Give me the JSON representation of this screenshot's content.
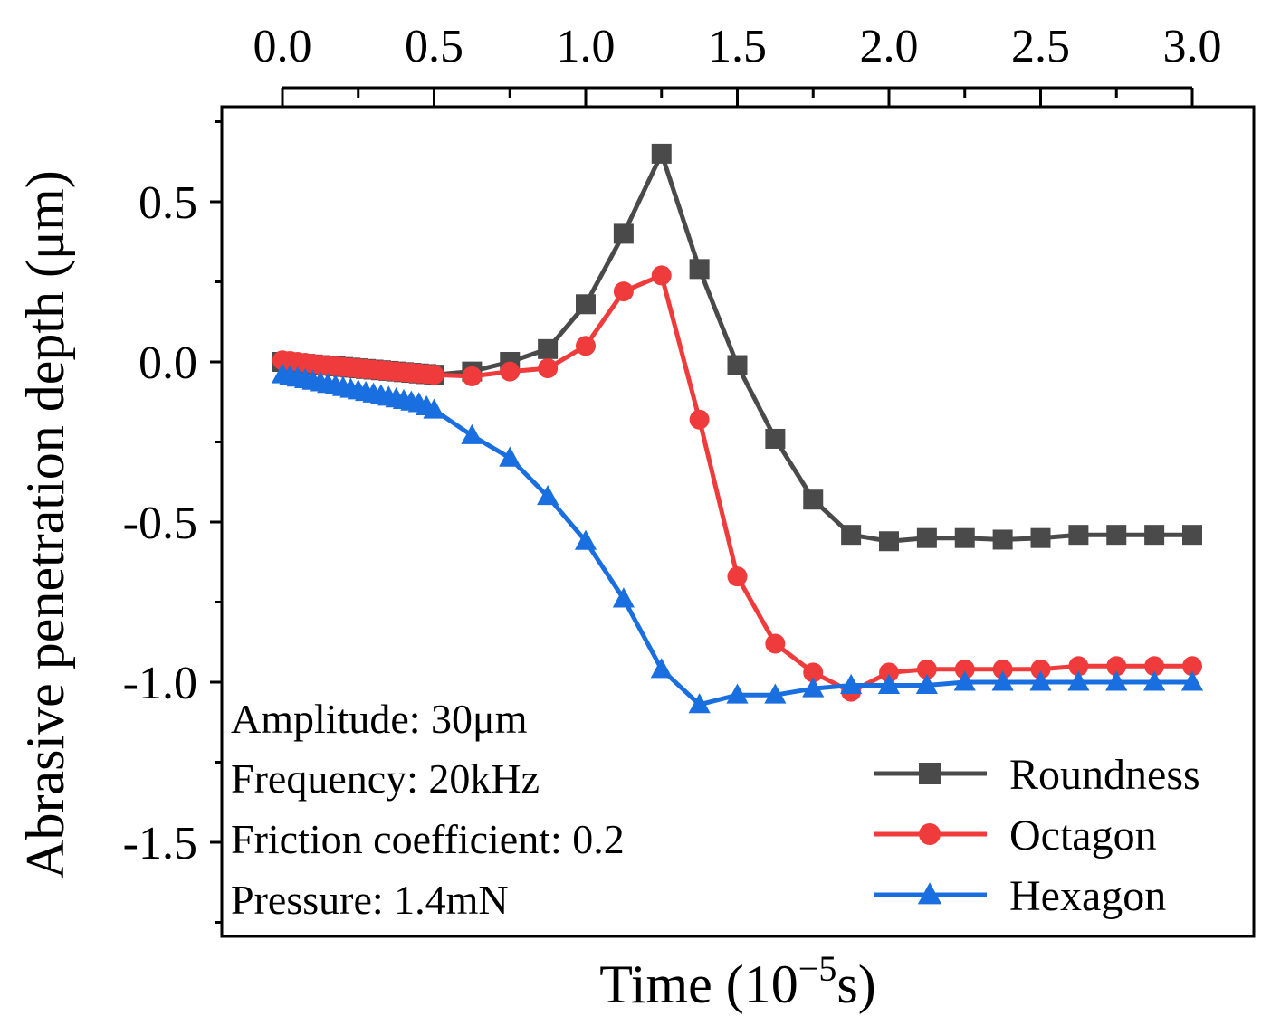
{
  "chart_data": {
    "type": "line",
    "xlabel": "Time (10",
    "xlabel_sup": "−5",
    "xlabel_suffix": "s)",
    "ylabel": "Abrasive penetration depth (μm)",
    "xlim": [
      -0.1,
      3.2
    ],
    "ylim": [
      -1.8,
      0.8
    ],
    "x_tick_position": "top",
    "x_ticks": [
      "0.0",
      "0.5",
      "1.0",
      "1.5",
      "2.0",
      "2.5",
      "3.0"
    ],
    "y_ticks": [
      "0.5",
      "0.0",
      "-0.5",
      "-1.0",
      "-1.5"
    ],
    "grid": false,
    "legend_position": "bottom-right",
    "annotation": [
      "Amplitude: 30μm",
      "Frequency: 20kHz",
      "Friction coefficient: 0.2",
      "Pressure: 1.4mN"
    ],
    "series": [
      {
        "name": "Roundness",
        "color": "#4a4a4a",
        "marker": "square",
        "x": [
          0,
          0.025,
          0.05,
          0.075,
          0.1,
          0.125,
          0.15,
          0.175,
          0.2,
          0.225,
          0.25,
          0.275,
          0.3,
          0.325,
          0.35,
          0.375,
          0.4,
          0.425,
          0.45,
          0.475,
          0.5,
          0.625,
          0.75,
          0.875,
          1.0,
          1.125,
          1.25,
          1.375,
          1.5,
          1.625,
          1.75,
          1.875,
          2.0,
          2.125,
          2.25,
          2.375,
          2.5,
          2.625,
          2.75,
          2.875,
          3.0
        ],
        "values": [
          0,
          -0.002,
          -0.004,
          -0.006,
          -0.008,
          -0.01,
          -0.012,
          -0.014,
          -0.016,
          -0.018,
          -0.02,
          -0.022,
          -0.024,
          -0.026,
          -0.028,
          -0.03,
          -0.032,
          -0.034,
          -0.036,
          -0.038,
          -0.04,
          -0.03,
          0.0,
          0.04,
          0.18,
          0.4,
          0.65,
          0.29,
          -0.01,
          -0.24,
          -0.43,
          -0.54,
          -0.56,
          -0.55,
          -0.55,
          -0.555,
          -0.55,
          -0.54,
          -0.54,
          -0.54,
          -0.54
        ]
      },
      {
        "name": "Octagon",
        "color": "#ef3b3b",
        "marker": "circle",
        "x": [
          0,
          0.025,
          0.05,
          0.075,
          0.1,
          0.125,
          0.15,
          0.175,
          0.2,
          0.225,
          0.25,
          0.275,
          0.3,
          0.325,
          0.35,
          0.375,
          0.4,
          0.425,
          0.45,
          0.475,
          0.5,
          0.625,
          0.75,
          0.875,
          1.0,
          1.125,
          1.25,
          1.375,
          1.5,
          1.625,
          1.75,
          1.875,
          2.0,
          2.125,
          2.25,
          2.375,
          2.5,
          2.625,
          2.75,
          2.875,
          3.0
        ],
        "values": [
          0.005,
          0.003,
          0.0,
          -0.003,
          -0.006,
          -0.009,
          -0.012,
          -0.014,
          -0.016,
          -0.018,
          -0.02,
          -0.022,
          -0.024,
          -0.026,
          -0.028,
          -0.03,
          -0.032,
          -0.034,
          -0.036,
          -0.038,
          -0.04,
          -0.045,
          -0.03,
          -0.02,
          0.05,
          0.22,
          0.27,
          -0.18,
          -0.67,
          -0.88,
          -0.97,
          -1.03,
          -0.97,
          -0.96,
          -0.96,
          -0.96,
          -0.96,
          -0.95,
          -0.95,
          -0.95,
          -0.95
        ]
      },
      {
        "name": "Hexagon",
        "color": "#1a6fe0",
        "marker": "triangle",
        "x": [
          0,
          0.025,
          0.05,
          0.075,
          0.1,
          0.125,
          0.15,
          0.175,
          0.2,
          0.225,
          0.25,
          0.275,
          0.3,
          0.325,
          0.35,
          0.375,
          0.4,
          0.425,
          0.45,
          0.475,
          0.5,
          0.625,
          0.75,
          0.875,
          1.0,
          1.125,
          1.25,
          1.375,
          1.5,
          1.625,
          1.75,
          1.875,
          2.0,
          2.125,
          2.25,
          2.375,
          2.5,
          2.625,
          2.75,
          2.875,
          3.0
        ],
        "values": [
          -0.04,
          -0.045,
          -0.05,
          -0.055,
          -0.06,
          -0.065,
          -0.07,
          -0.075,
          -0.08,
          -0.085,
          -0.09,
          -0.095,
          -0.1,
          -0.105,
          -0.11,
          -0.115,
          -0.12,
          -0.125,
          -0.13,
          -0.14,
          -0.15,
          -0.23,
          -0.3,
          -0.42,
          -0.56,
          -0.74,
          -0.96,
          -1.07,
          -1.04,
          -1.04,
          -1.02,
          -1.01,
          -1.01,
          -1.01,
          -1.0,
          -1.0,
          -1.0,
          -1.0,
          -1.0,
          -1.0,
          -1.0
        ]
      }
    ]
  }
}
